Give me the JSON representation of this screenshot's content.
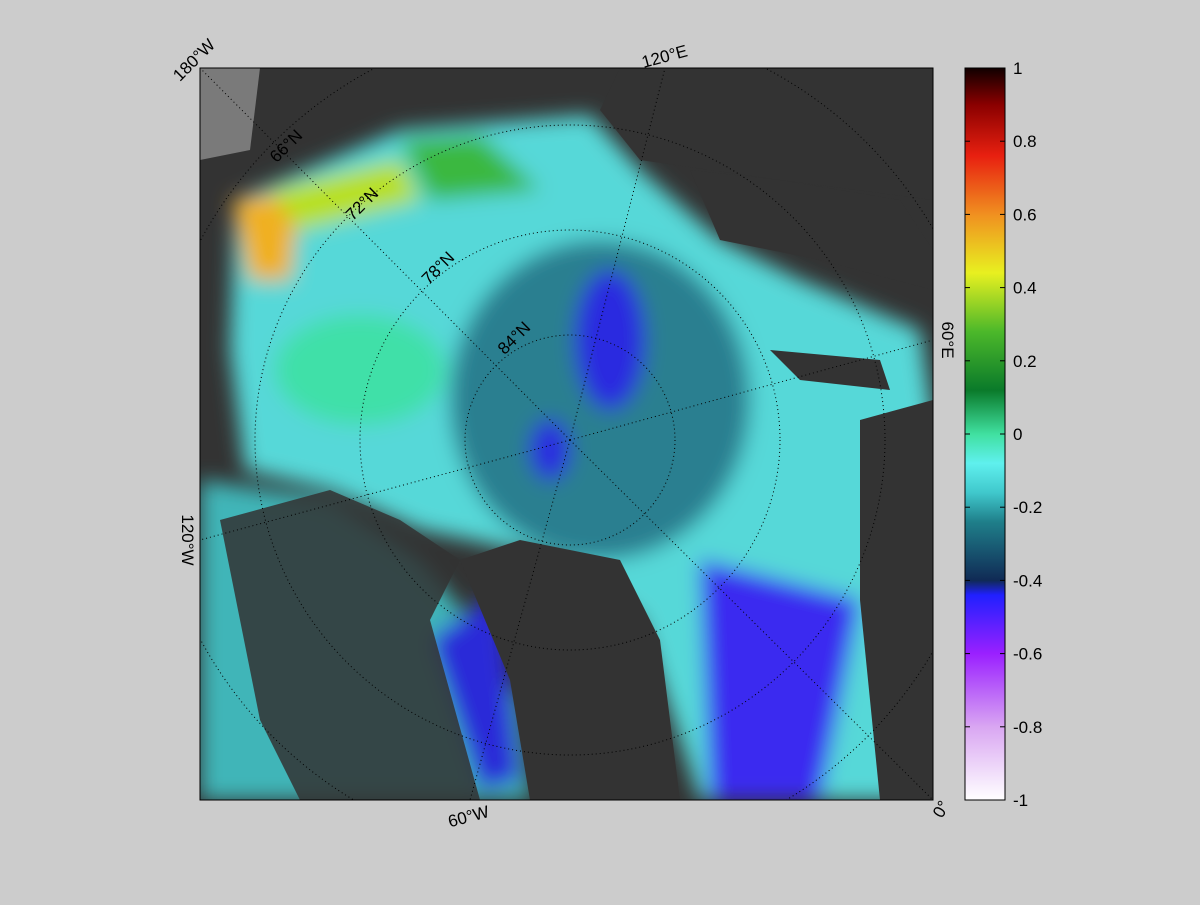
{
  "map": {
    "meridian_labels": [
      "180°W",
      "120°E",
      "60°E",
      "0°",
      "60°W",
      "120°W"
    ],
    "parallel_labels": [
      "66°N",
      "72°N",
      "78°N",
      "84°N"
    ]
  },
  "colorbar": {
    "lim": [
      -1,
      1
    ],
    "ticks": [
      -1,
      -0.8,
      -0.6,
      -0.4,
      -0.2,
      0,
      0.2,
      0.4,
      0.6,
      0.8,
      1
    ]
  }
}
